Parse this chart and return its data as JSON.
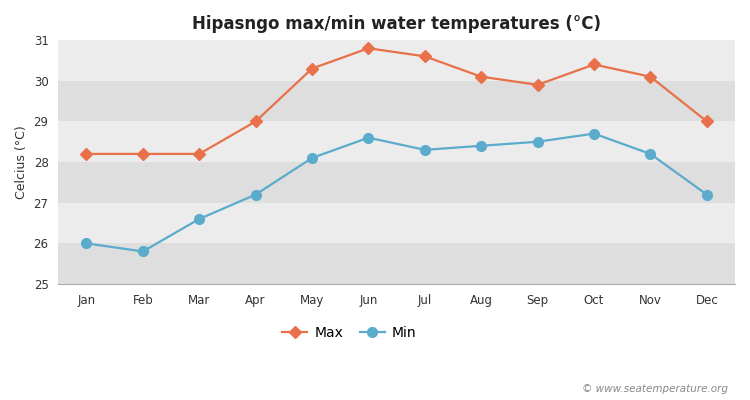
{
  "title": "Hipasngo max/min water temperatures (°C)",
  "ylabel": "Celcius (°C)",
  "months": [
    "Jan",
    "Feb",
    "Mar",
    "Apr",
    "May",
    "Jun",
    "Jul",
    "Aug",
    "Sep",
    "Oct",
    "Nov",
    "Dec"
  ],
  "max_values": [
    28.2,
    28.2,
    28.2,
    29.0,
    30.3,
    30.8,
    30.6,
    30.1,
    29.9,
    30.4,
    30.1,
    29.0
  ],
  "min_values": [
    26.0,
    25.8,
    26.6,
    27.2,
    28.1,
    28.6,
    28.3,
    28.4,
    28.5,
    28.7,
    28.2,
    27.2
  ],
  "max_color": "#e8714a",
  "min_color": "#5aabcc",
  "fig_bg_color": "#ffffff",
  "plot_bg_color": "#e8e8e8",
  "band_light": "#ececec",
  "band_dark": "#dedede",
  "ylim": [
    25,
    31
  ],
  "yticks": [
    25,
    26,
    27,
    28,
    29,
    30,
    31
  ],
  "watermark": "© www.seatemperature.org",
  "legend_max": "Max",
  "legend_min": "Min",
  "title_fontsize": 12,
  "axis_label_fontsize": 9,
  "tick_fontsize": 8.5,
  "legend_fontsize": 10,
  "max_marker": "D",
  "min_marker": "o",
  "linewidth": 1.6,
  "max_markersize": 6,
  "min_markersize": 7
}
